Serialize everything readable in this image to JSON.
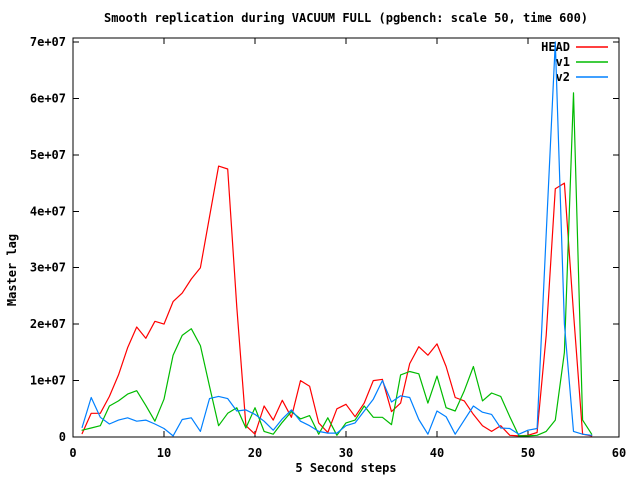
{
  "chart_data": {
    "type": "line",
    "title": "Smooth replication during VACUUM FULL (pgbench: scale 50, time 600)",
    "xlabel": "5 Second steps",
    "ylabel": "Master lag",
    "xlim": [
      0,
      60
    ],
    "ylim": [
      0,
      70000000
    ],
    "grid": false,
    "legend_position": "top-right-inside",
    "xticks": [
      0,
      10,
      20,
      30,
      40,
      50,
      60
    ],
    "xtick_labels": [
      "0",
      "10",
      "20",
      "30",
      "40",
      "50",
      "60"
    ],
    "yticks": [
      0,
      10000000,
      20000000,
      30000000,
      40000000,
      50000000,
      60000000,
      70000000
    ],
    "ytick_labels": [
      "0",
      "1e+07",
      "2e+07",
      "3e+07",
      "4e+07",
      "5e+07",
      "6e+07",
      "7e+07"
    ],
    "x": [
      1,
      2,
      3,
      4,
      5,
      6,
      7,
      8,
      9,
      10,
      11,
      12,
      13,
      14,
      15,
      16,
      17,
      18,
      19,
      20,
      21,
      22,
      23,
      24,
      25,
      26,
      27,
      28,
      29,
      30,
      31,
      32,
      33,
      34,
      35,
      36,
      37,
      38,
      39,
      40,
      41,
      42,
      43,
      44,
      45,
      46,
      47,
      48,
      49,
      50,
      51,
      52,
      53,
      54,
      55,
      56,
      57
    ],
    "series": [
      {
        "name": "HEAD",
        "color": "#ff0000",
        "values": [
          600000,
          4200000,
          4200000,
          7200000,
          11000000,
          15800000,
          19500000,
          17500000,
          20500000,
          20000000,
          24000000,
          25500000,
          28000000,
          30000000,
          39000000,
          48000000,
          47500000,
          23000000,
          2000000,
          500000,
          5500000,
          3000000,
          6500000,
          3500000,
          10000000,
          9000000,
          2500000,
          800000,
          5000000,
          5800000,
          3600000,
          6000000,
          10000000,
          10200000,
          4500000,
          6000000,
          13000000,
          16000000,
          14500000,
          16500000,
          12500000,
          7000000,
          6400000,
          4000000,
          2000000,
          1000000,
          2000000,
          300000,
          200000,
          300000,
          800000,
          18000000,
          44000000,
          45000000,
          22000000,
          500000,
          200000
        ]
      },
      {
        "name": "v1",
        "color": "#00bb00",
        "values": [
          1200000,
          1600000,
          2000000,
          5500000,
          6400000,
          7600000,
          8200000,
          5600000,
          2800000,
          6700000,
          14500000,
          18000000,
          19200000,
          16200000,
          9000000,
          2000000,
          4200000,
          5200000,
          1600000,
          5200000,
          1000000,
          500000,
          2600000,
          4500000,
          3200000,
          3800000,
          500000,
          3400000,
          300000,
          2500000,
          3000000,
          5500000,
          3500000,
          3500000,
          2200000,
          11000000,
          11600000,
          11200000,
          6000000,
          10800000,
          5200000,
          4600000,
          8200000,
          12500000,
          6400000,
          7800000,
          7200000,
          3600000,
          200000,
          200000,
          300000,
          1000000,
          3000000,
          15000000,
          61000000,
          3000000,
          500000
        ]
      },
      {
        "name": "v2",
        "color": "#0080ff",
        "values": [
          1700000,
          7000000,
          3500000,
          2300000,
          3000000,
          3400000,
          2800000,
          3000000,
          2300000,
          1500000,
          200000,
          3100000,
          3400000,
          1000000,
          6800000,
          7200000,
          6800000,
          4600000,
          4800000,
          4000000,
          2800000,
          1200000,
          3200000,
          4800000,
          2800000,
          2000000,
          1000000,
          700000,
          700000,
          2000000,
          2500000,
          4600000,
          6700000,
          10000000,
          6200000,
          7300000,
          7000000,
          3100000,
          500000,
          4600000,
          3600000,
          500000,
          3000000,
          5500000,
          4400000,
          4000000,
          1600000,
          1500000,
          500000,
          1200000,
          1500000,
          36000000,
          70000000,
          20000000,
          1000000,
          500000,
          300000
        ]
      }
    ]
  }
}
